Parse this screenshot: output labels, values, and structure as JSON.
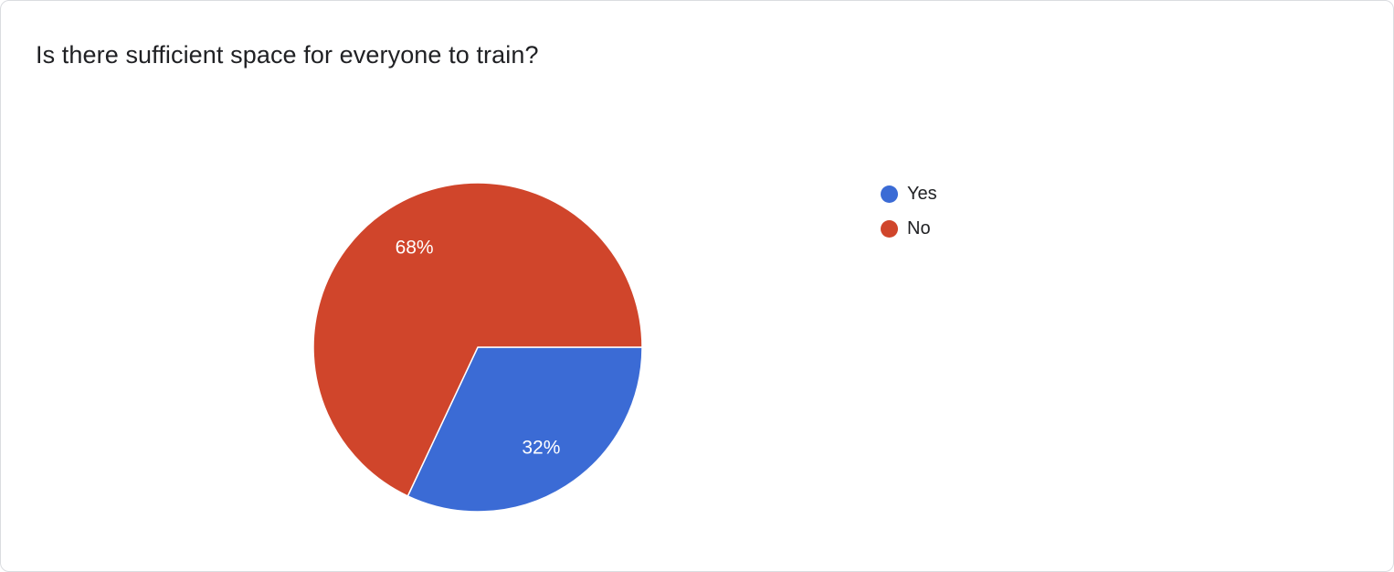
{
  "title": "Is there sufficient space for everyone to train?",
  "chart_data": {
    "type": "pie",
    "title": "Is there sufficient space for everyone to train?",
    "categories": [
      "Yes",
      "No"
    ],
    "values": [
      32,
      68
    ],
    "slice_labels": [
      "32%",
      "68%"
    ],
    "colors": [
      "#3B6BD5",
      "#D0452B"
    ],
    "start_angle_deg": 0,
    "direction": "clockwise",
    "legend_position": "right",
    "slice_label_color": "#ffffff",
    "slice_border_color": "#ffffff"
  },
  "legend": {
    "items": [
      {
        "label": "Yes",
        "color": "#3B6BD5"
      },
      {
        "label": "No",
        "color": "#D0452B"
      }
    ]
  }
}
